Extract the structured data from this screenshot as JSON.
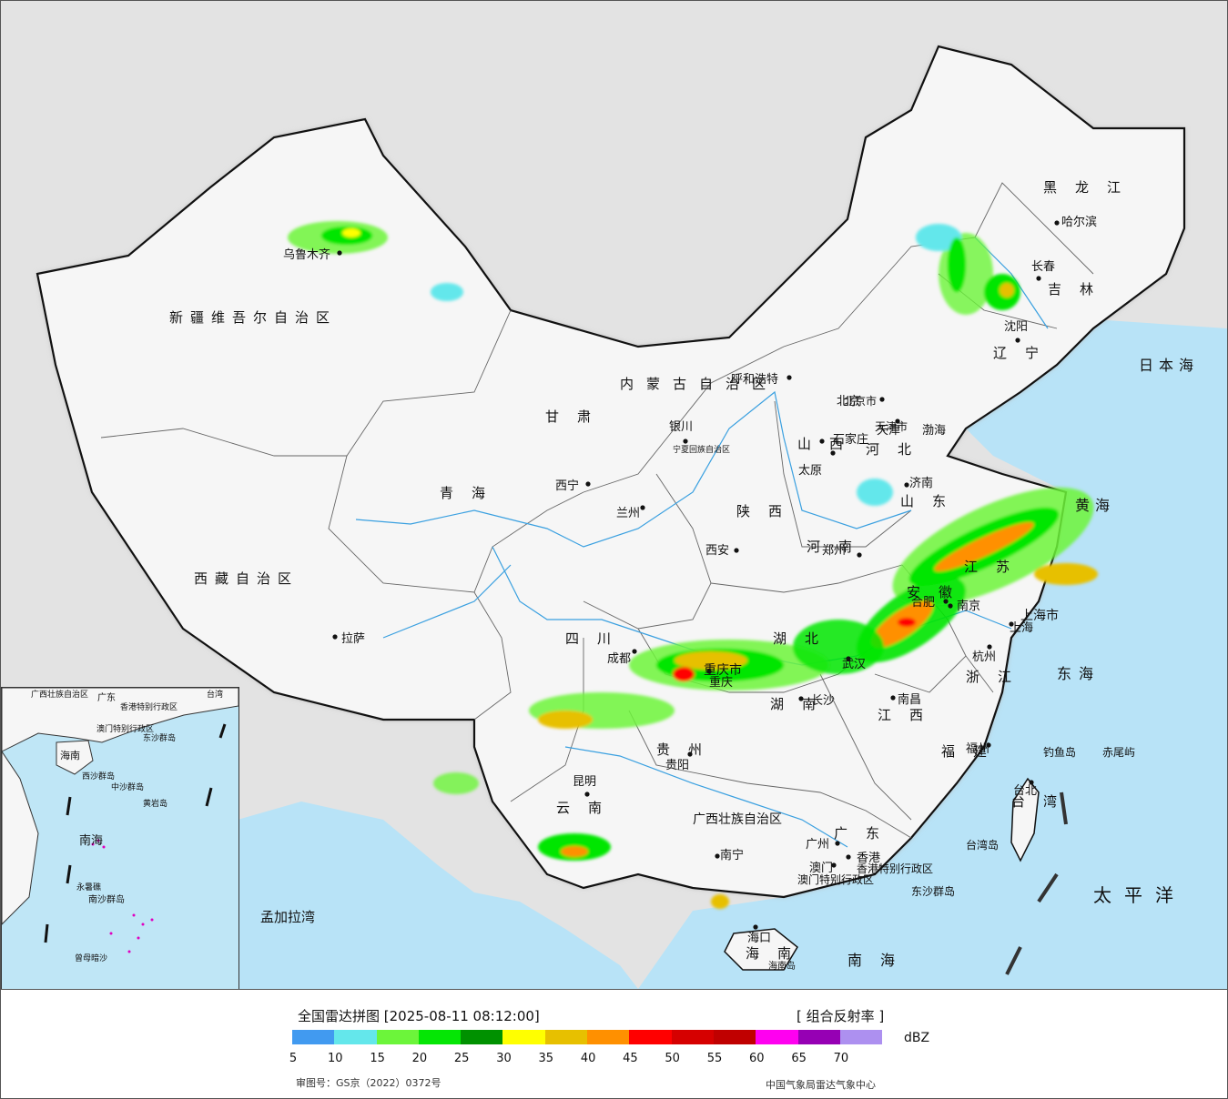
{
  "legend": {
    "title": "全国雷达拼图 [2025-08-11 08:12:00]",
    "product": "[ 组合反射率 ]",
    "unit": "dBZ",
    "approval_number": "审图号：GS京（2022）0372号",
    "issuer": "中国气象局雷达气象中心",
    "colors": [
      "#419af0",
      "#64e7eb",
      "#6cf53a",
      "#05e605",
      "#009100",
      "#ffff00",
      "#e7c000",
      "#ff9000",
      "#ff0000",
      "#d60000",
      "#c00000",
      "#ff00f0",
      "#9600b4",
      "#ad90f0"
    ],
    "ticks": [
      "5",
      "10",
      "15",
      "20",
      "25",
      "30",
      "35",
      "40",
      "45",
      "50",
      "55",
      "60",
      "65",
      "70"
    ]
  },
  "map": {
    "colors": {
      "background": "#e3e3e3",
      "land": "#f6f6f6",
      "sea": "#b8e3f7",
      "border": "#111111",
      "water": "#3aa0e0"
    },
    "provinces": [
      "新疆维吾尔自治区",
      "西藏自治区",
      "青海",
      "甘肃",
      "内蒙古自治区",
      "宁夏回族自治区",
      "陕西",
      "山西",
      "河北",
      "北京市",
      "天津市",
      "山东",
      "河南",
      "湖北",
      "重庆市",
      "四川",
      "贵州",
      "云南",
      "广西壮族自治区",
      "广东",
      "湖南",
      "江西",
      "福建",
      "浙江",
      "上海市",
      "江苏",
      "安徽",
      "辽宁",
      "吉林",
      "黑龙江",
      "海南",
      "台湾",
      "香港特别行政区",
      "澳门特别行政区"
    ],
    "cities": [
      "乌鲁木齐",
      "拉萨",
      "西宁",
      "兰州",
      "银川",
      "呼和浩特",
      "北京",
      "天津",
      "石家庄",
      "太原",
      "济南",
      "郑州",
      "西安",
      "成都",
      "重庆",
      "贵阳",
      "昆明",
      "南宁",
      "广州",
      "香港",
      "澳门",
      "长沙",
      "武汉",
      "南昌",
      "福州",
      "台北",
      "杭州",
      "上海",
      "南京",
      "合肥",
      "沈阳",
      "长春",
      "哈尔滨",
      "海口"
    ],
    "seas": [
      "日本海",
      "渤海",
      "黄海",
      "东海",
      "太平洋",
      "南海",
      "孟加拉湾",
      "钓鱼岛",
      "赤尾屿",
      "台湾岛",
      "东沙群岛",
      "海南岛"
    ],
    "inset_labels": [
      "南海",
      "海南",
      "东沙群岛",
      "西沙群岛",
      "中沙群岛",
      "黄岩岛",
      "永暑礁",
      "南沙群岛",
      "曾母暗沙",
      "广西壮族自治区",
      "广东",
      "香港特别行政区",
      "澳门特别行政区",
      "台湾"
    ]
  }
}
